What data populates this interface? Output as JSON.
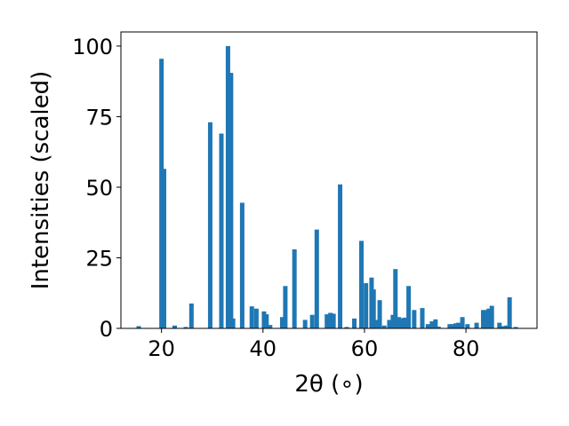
{
  "chart_data": {
    "type": "bar",
    "xlabel": "2θ (∘)",
    "ylabel": "Intensities (scaled)",
    "xlim": [
      12,
      94
    ],
    "ylim": [
      0,
      105
    ],
    "x_ticks": [
      20,
      40,
      60,
      80
    ],
    "y_ticks": [
      0,
      25,
      50,
      75,
      100
    ],
    "bar_color": "#1f77b4",
    "grid": false,
    "legend": "none",
    "x": [
      15.5,
      20.0,
      20.5,
      22.6,
      24.8,
      25.9,
      29.6,
      31.8,
      33.1,
      33.7,
      34.1,
      35.9,
      37.8,
      38.7,
      40.2,
      40.7,
      41.4,
      43.8,
      44.4,
      46.2,
      48.3,
      49.7,
      50.6,
      52.6,
      53.3,
      53.9,
      55.2,
      56.5,
      58.0,
      59.4,
      60.3,
      61.4,
      61.8,
      62.4,
      63.0,
      63.9,
      64.9,
      65.6,
      66.1,
      66.8,
      67.3,
      67.9,
      68.7,
      69.8,
      71.4,
      72.5,
      73.3,
      74.0,
      74.6,
      76.8,
      77.3,
      78.0,
      78.5,
      79.3,
      80.3,
      82.1,
      83.4,
      83.9,
      84.5,
      85.1,
      86.6,
      87.3,
      88.0,
      88.6,
      89.8
    ],
    "values": [
      0.8,
      95.5,
      56.5,
      1.0,
      0.5,
      8.8,
      73.0,
      69.0,
      100.0,
      90.5,
      3.5,
      44.5,
      7.8,
      7.0,
      6.0,
      5.0,
      1.2,
      4.0,
      15.0,
      28.0,
      3.0,
      4.8,
      35.0,
      5.0,
      5.5,
      5.2,
      51.0,
      0.5,
      3.5,
      31.0,
      16.0,
      18.0,
      13.8,
      3.0,
      10.0,
      1.0,
      3.0,
      4.8,
      21.0,
      4.0,
      3.5,
      3.8,
      15.0,
      6.5,
      7.2,
      1.5,
      2.5,
      3.2,
      0.6,
      1.5,
      1.5,
      1.8,
      2.0,
      4.0,
      1.5,
      2.0,
      6.5,
      6.5,
      7.0,
      8.0,
      2.0,
      0.8,
      1.0,
      11.0,
      0.5
    ]
  }
}
